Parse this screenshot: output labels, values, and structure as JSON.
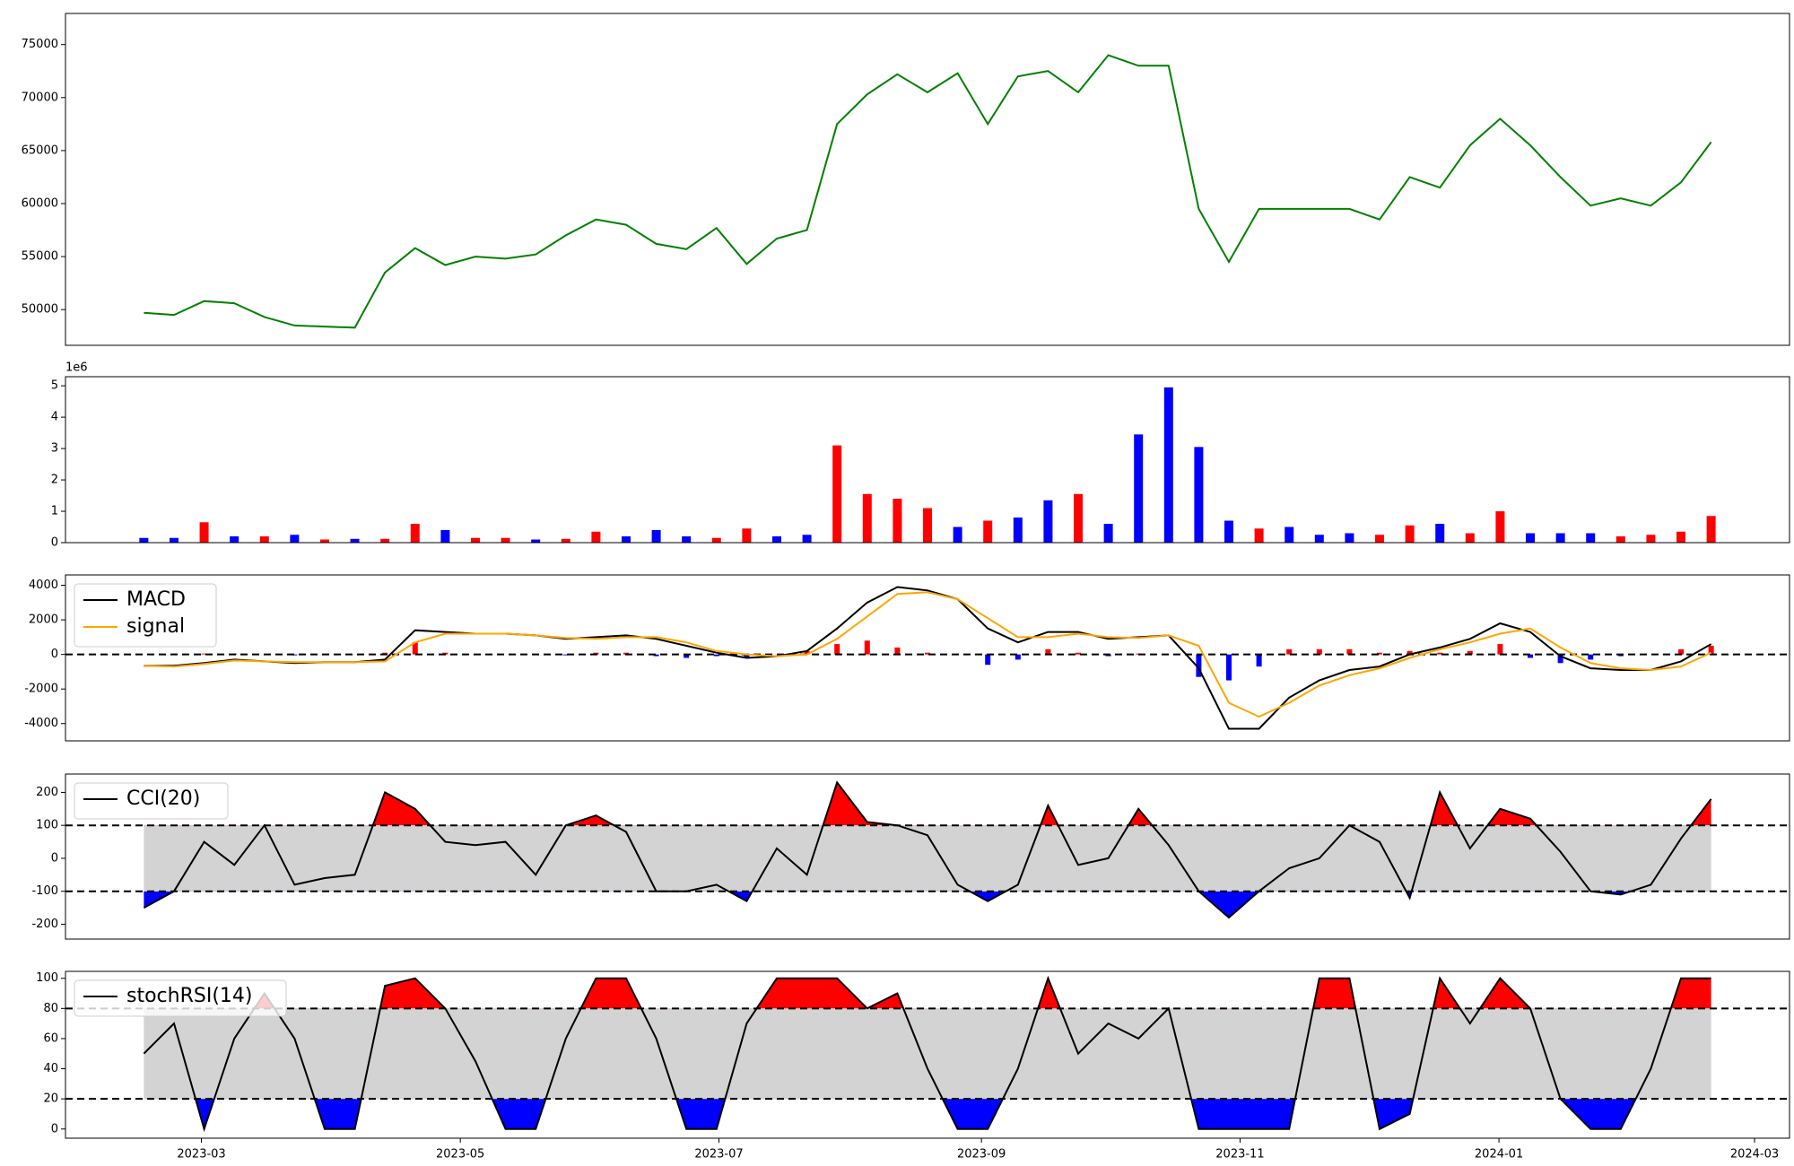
{
  "chart_data": [
    {
      "type": "line",
      "xlim": [
        -2.6,
        54.6
      ],
      "ylim": [
        46630,
        77935
      ],
      "yticks": [
        50000,
        55000,
        60000,
        65000,
        70000,
        75000
      ],
      "series": [
        {
          "color": "#008000",
          "values": [
            49700,
            49500,
            50800,
            50600,
            49300,
            48500,
            48400,
            48300,
            53500,
            55800,
            54200,
            55000,
            54800,
            55200,
            57000,
            58500,
            58000,
            56200,
            55700,
            57700,
            54300,
            56700,
            57500,
            67500,
            70300,
            72200,
            70500,
            72300,
            67500,
            72000,
            72500,
            70500,
            74000,
            73000,
            73000,
            59500,
            54500,
            59500,
            59500,
            59500,
            59500,
            58500,
            62500,
            61500,
            65500,
            68000,
            65500,
            62500,
            59800,
            60500,
            59800,
            62000,
            65800
          ]
        }
      ]
    },
    {
      "type": "bar",
      "xlim": [
        -2.6,
        54.6
      ],
      "ylim": [
        0,
        5.29
      ],
      "yticks": [
        0,
        1,
        2,
        3,
        4,
        5
      ],
      "offset_label": "1e6",
      "values": [
        0.15,
        0.15,
        0.65,
        0.2,
        0.2,
        0.25,
        0.1,
        0.12,
        0.12,
        0.6,
        0.4,
        0.15,
        0.15,
        0.1,
        0.12,
        0.35,
        0.2,
        0.4,
        0.2,
        0.15,
        0.45,
        0.2,
        0.25,
        3.1,
        1.55,
        1.4,
        1.1,
        0.5,
        0.7,
        0.8,
        1.35,
        1.55,
        0.6,
        3.45,
        4.95,
        3.05,
        0.7,
        0.45,
        0.5,
        0.25,
        0.3,
        0.25,
        0.55,
        0.6,
        0.3,
        1.0,
        0.3,
        0.3,
        0.3,
        0.2,
        0.25,
        0.35,
        0.85
      ],
      "colors": [
        "#0000ff",
        "#0000ff",
        "#ff0000",
        "#0000ff",
        "#ff0000",
        "#0000ff",
        "#ff0000",
        "#0000ff",
        "#ff0000",
        "#ff0000",
        "#0000ff",
        "#ff0000",
        "#ff0000",
        "#0000ff",
        "#ff0000",
        "#ff0000",
        "#0000ff",
        "#0000ff",
        "#0000ff",
        "#ff0000",
        "#ff0000",
        "#0000ff",
        "#0000ff",
        "#ff0000",
        "#ff0000",
        "#ff0000",
        "#ff0000",
        "#0000ff",
        "#ff0000",
        "#0000ff",
        "#0000ff",
        "#ff0000",
        "#0000ff",
        "#0000ff",
        "#0000ff",
        "#0000ff",
        "#0000ff",
        "#ff0000",
        "#0000ff",
        "#0000ff",
        "#0000ff",
        "#ff0000",
        "#ff0000",
        "#0000ff",
        "#ff0000",
        "#ff0000",
        "#0000ff",
        "#0000ff",
        "#0000ff",
        "#ff0000",
        "#ff0000",
        "#ff0000",
        "#ff0000"
      ]
    },
    {
      "type": "macd",
      "xlim": [
        -2.6,
        54.6
      ],
      "ylim": [
        -5000,
        4600
      ],
      "yticks": [
        -4000,
        -2000,
        0,
        2000,
        4000
      ],
      "hline": 0,
      "series": [
        {
          "name": "MACD",
          "color": "#000000",
          "values": [
            -650,
            -650,
            -500,
            -300,
            -400,
            -500,
            -450,
            -450,
            -300,
            1400,
            1300,
            1200,
            1200,
            1100,
            900,
            1000,
            1100,
            900,
            500,
            100,
            -200,
            -100,
            200,
            1500,
            3000,
            3900,
            3700,
            3200,
            1500,
            700,
            1300,
            1300,
            900,
            1000,
            1100,
            -800,
            -4300,
            -4300,
            -2500,
            -1500,
            -900,
            -700,
            0,
            400,
            900,
            1800,
            1300,
            -100,
            -800,
            -900,
            -900,
            -400,
            600
          ]
        },
        {
          "name": "signal",
          "color": "#ffa500",
          "values": [
            -650,
            -700,
            -550,
            -350,
            -400,
            -450,
            -450,
            -450,
            -400,
            700,
            1200,
            1200,
            1200,
            1100,
            950,
            900,
            1000,
            1000,
            700,
            200,
            0,
            -100,
            0,
            900,
            2200,
            3500,
            3600,
            3200,
            2100,
            1000,
            1000,
            1200,
            1000,
            950,
            1100,
            500,
            -2800,
            -3600,
            -2800,
            -1800,
            -1200,
            -800,
            -200,
            300,
            700,
            1200,
            1500,
            400,
            -500,
            -800,
            -900,
            -700,
            100
          ]
        }
      ],
      "histogram": {
        "positive_color": "#ff0000",
        "negative_color": "#0000ff",
        "values": [
          0,
          50,
          50,
          50,
          0,
          -50,
          0,
          0,
          100,
          700,
          100,
          0,
          0,
          0,
          -50,
          100,
          100,
          -100,
          -200,
          -100,
          -200,
          0,
          200,
          600,
          800,
          400,
          100,
          0,
          -600,
          -300,
          300,
          100,
          -100,
          50,
          0,
          -1300,
          -1500,
          -700,
          300,
          300,
          300,
          100,
          200,
          100,
          200,
          600,
          -200,
          -500,
          -300,
          -100,
          0,
          300,
          500
        ]
      }
    },
    {
      "type": "oscillator",
      "xlim": [
        -2.6,
        54.6
      ],
      "ylim": [
        -245,
        255.6
      ],
      "yticks": [
        -200,
        -100,
        0,
        100,
        200
      ],
      "bands": [
        -100,
        100
      ],
      "band_color": "#d3d3d3",
      "upper_color": "#ff0000",
      "lower_color": "#0000ff",
      "series": [
        {
          "name": "CCI(20)",
          "color": "#000000",
          "values": [
            -150,
            -100,
            50,
            -20,
            100,
            -80,
            -60,
            -50,
            200,
            150,
            50,
            40,
            50,
            -50,
            100,
            130,
            80,
            -100,
            -100,
            -80,
            -130,
            30,
            -50,
            230,
            110,
            100,
            70,
            -80,
            -130,
            -80,
            160,
            -20,
            0,
            150,
            40,
            -100,
            -180,
            -100,
            -30,
            0,
            100,
            50,
            -120,
            200,
            30,
            150,
            120,
            20,
            -100,
            -110,
            -80,
            60,
            180
          ]
        }
      ]
    },
    {
      "type": "oscillator",
      "xlim": [
        -2.6,
        54.6
      ],
      "ylim": [
        -6.1,
        104.6
      ],
      "yticks": [
        0,
        20,
        40,
        60,
        80,
        100
      ],
      "bands": [
        20,
        80
      ],
      "band_color": "#d3d3d3",
      "upper_color": "#ff0000",
      "lower_color": "#0000ff",
      "xticks": [
        {
          "value": 1.91,
          "label": "2023-03"
        },
        {
          "value": 10.5,
          "label": "2023-05"
        },
        {
          "value": 19.08,
          "label": "2023-07"
        },
        {
          "value": 27.79,
          "label": "2023-09"
        },
        {
          "value": 36.37,
          "label": "2023-11"
        },
        {
          "value": 44.96,
          "label": "2024-01"
        },
        {
          "value": 53.44,
          "label": "2024-03"
        }
      ],
      "series": [
        {
          "name": "stochRSI(14)",
          "color": "#000000",
          "values": [
            50,
            70,
            0,
            60,
            90,
            60,
            0,
            0,
            95,
            100,
            80,
            45,
            0,
            0,
            60,
            100,
            100,
            60,
            0,
            0,
            70,
            100,
            100,
            100,
            80,
            90,
            40,
            0,
            0,
            40,
            100,
            50,
            70,
            60,
            80,
            0,
            0,
            0,
            0,
            100,
            100,
            0,
            10,
            100,
            70,
            100,
            80,
            20,
            0,
            0,
            40,
            100,
            100
          ]
        }
      ]
    }
  ]
}
